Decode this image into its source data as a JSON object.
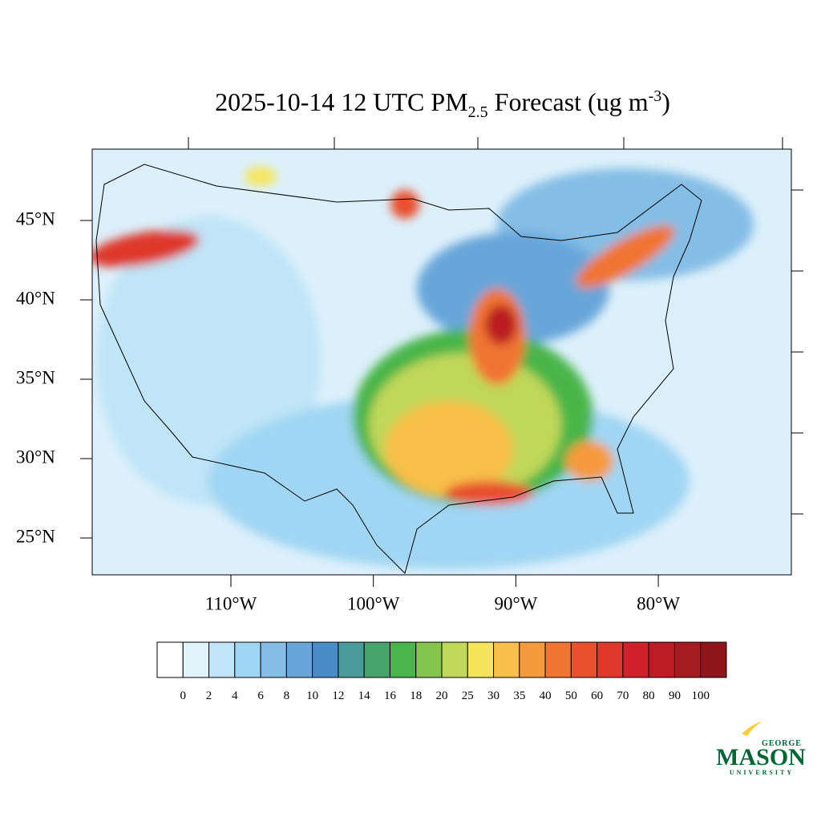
{
  "map": {
    "title": {
      "main": "2025-10-14 12 UTC PM",
      "sub": "2.5",
      "after": " Forecast (ug m",
      "sup": "-3",
      "end": ")"
    },
    "lat_labels": [
      "45°N",
      "40°N",
      "35°N",
      "30°N",
      "25°N"
    ],
    "lon_labels": [
      "110°W",
      "100°W",
      "90°W",
      "80°W"
    ],
    "colorbar": {
      "levels": [
        0,
        2,
        4,
        6,
        8,
        10,
        12,
        14,
        16,
        18,
        20,
        25,
        30,
        35,
        40,
        50,
        60,
        70,
        80,
        90,
        100
      ],
      "colors": [
        "#ffffff",
        "#e0f3fb",
        "#bfe5f7",
        "#a0d6f3",
        "#84bde5",
        "#68a6d9",
        "#4a8cc8",
        "#4a9b9b",
        "#45a36b",
        "#4ab54a",
        "#84c550",
        "#c0d75a",
        "#f6e55a",
        "#f8bf4a",
        "#f59a3d",
        "#f17532",
        "#e8502e",
        "#de392b",
        "#d0212a",
        "#ba1d24",
        "#a61b20",
        "#8e151a"
      ]
    },
    "logo": {
      "top": "GEORGE",
      "middle": "MASON",
      "bottom": "UNIVERSITY"
    }
  }
}
